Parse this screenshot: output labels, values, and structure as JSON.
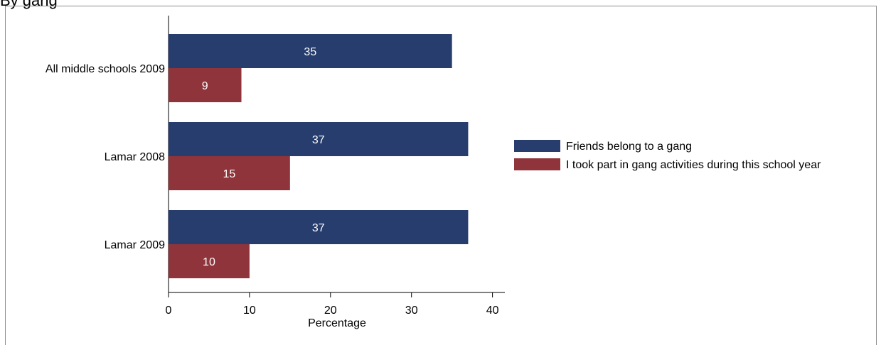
{
  "title": "By gang",
  "chart_data": {
    "type": "bar",
    "orientation": "horizontal",
    "categories": [
      "All middle schools 2009",
      "Lamar 2008",
      "Lamar 2009"
    ],
    "series": [
      {
        "name": "Friends belong to a gang",
        "values": [
          35,
          37,
          37
        ],
        "color": "#263d6e"
      },
      {
        "name": "I took part in gang activities during this school year",
        "values": [
          9,
          15,
          10
        ],
        "color": "#8f343a"
      }
    ],
    "xlabel": "Percentage",
    "xlim": [
      0,
      41.5
    ],
    "xticks": [
      0,
      10,
      20,
      30,
      40
    ],
    "grid": false,
    "legend": "right"
  }
}
